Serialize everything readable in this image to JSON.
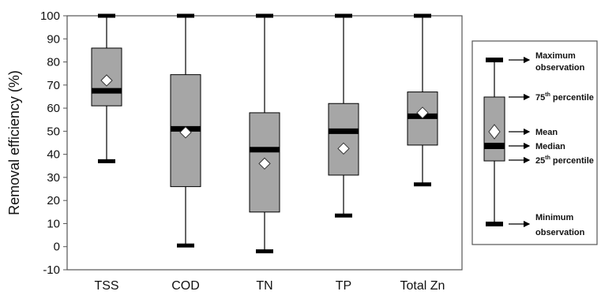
{
  "chart_data": {
    "type": "box",
    "ylabel": "Removal efficiency (%)",
    "xlabel": "",
    "ylim": [
      -10,
      100
    ],
    "yticks": [
      -10,
      0,
      10,
      20,
      30,
      40,
      50,
      60,
      70,
      80,
      90,
      100
    ],
    "categories": [
      "TSS",
      "COD",
      "TN",
      "TP",
      "Total Zn"
    ],
    "boxes": [
      {
        "min": 37,
        "q1": 61,
        "median": 67.5,
        "mean": 72,
        "q3": 86,
        "max": 100
      },
      {
        "min": 0.5,
        "q1": 26,
        "median": 51,
        "mean": 49.5,
        "q3": 74.5,
        "max": 100
      },
      {
        "min": -2,
        "q1": 15,
        "median": 42,
        "mean": 36,
        "q3": 58,
        "max": 100
      },
      {
        "min": 13.5,
        "q1": 31,
        "median": 50,
        "mean": 42.5,
        "q3": 62,
        "max": 100
      },
      {
        "min": 27,
        "q1": 44,
        "median": 56.5,
        "mean": 58,
        "q3": 67,
        "max": 100
      }
    ],
    "colors": {
      "box_fill": "#a6a6a6",
      "mean_marker": "#ffffff",
      "line": "#000000"
    },
    "legend": {
      "placement": "right",
      "labels": {
        "max": "Maximum",
        "max2": "observation",
        "p75": "75",
        "p75_sup": "th",
        "p75_word": " percentile",
        "mean": "Mean",
        "median": "Median",
        "p25": "25",
        "p25_sup": "th",
        "p25_word": " percentile",
        "min": "Minimum",
        "min2": "observation"
      }
    }
  }
}
